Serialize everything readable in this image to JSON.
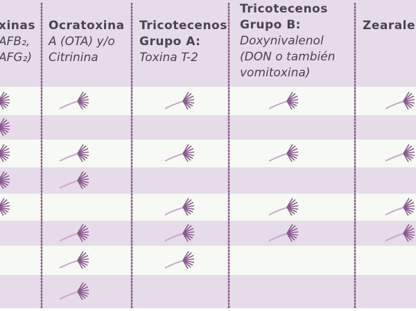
{
  "table": {
    "columns": [
      {
        "title": [
          "xinas"
        ],
        "subtitle": [
          "AFB₂,",
          "AFG₂)"
        ]
      },
      {
        "title": [
          "Ocratoxina"
        ],
        "subtitle": [
          "A (OTA) y/o",
          "Citrinina"
        ]
      },
      {
        "title": [
          "Tricotecenos",
          "Grupo A:"
        ],
        "subtitle": [
          "Toxina T-2"
        ]
      },
      {
        "title": [
          "Tricotecenos",
          "Grupo B:"
        ],
        "subtitle": [
          "Doxynivalenol",
          "(DON o también",
          "vomitoxina)"
        ]
      },
      {
        "title": [
          "Zearalen"
        ],
        "subtitle": []
      }
    ],
    "rows": [
      [
        true,
        true,
        true,
        true,
        true
      ],
      [
        true,
        false,
        false,
        false,
        false
      ],
      [
        true,
        true,
        true,
        true,
        true
      ],
      [
        true,
        true,
        false,
        false,
        false
      ],
      [
        true,
        false,
        true,
        true,
        true
      ],
      [
        false,
        true,
        true,
        true,
        true
      ],
      [
        false,
        true,
        true,
        false,
        false
      ],
      [
        false,
        true,
        false,
        false,
        false
      ]
    ]
  }
}
